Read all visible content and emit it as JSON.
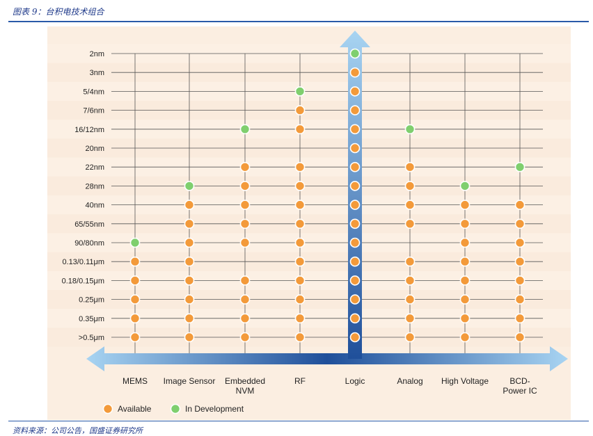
{
  "header": {
    "figure_title": "图表 9：台积电技术组合"
  },
  "footer": {
    "source": "资料来源：公司公告，国盛证券研究所"
  },
  "colors": {
    "panel_bg": "#fbeee1",
    "available": "#f39a3a",
    "in_development": "#7fcf6e",
    "arrow_light": "#a8d4f2",
    "arrow_dark": "#1f4f9a"
  },
  "chart_data": {
    "type": "scatter",
    "title": "",
    "xlabel": "",
    "ylabel": "",
    "categories": [
      "MEMS",
      "Image Sensor",
      "Embedded NVM",
      "RF",
      "Logic",
      "Analog",
      "High Voltage",
      "BCD-Power IC"
    ],
    "category_lines": [
      [
        "MEMS"
      ],
      [
        "Image Sensor"
      ],
      [
        "Embedded",
        "NVM"
      ],
      [
        "RF"
      ],
      [
        "Logic"
      ],
      [
        "Analog"
      ],
      [
        "High Voltage"
      ],
      [
        "BCD-",
        "Power IC"
      ]
    ],
    "nodes": [
      "2nm",
      "3nm",
      "5/4nm",
      "7/6nm",
      "16/12nm",
      "20nm",
      "22nm",
      "28nm",
      "40nm",
      "65/55nm",
      "90/80nm",
      "0.13/0.11μm",
      "0.18/0.15μm",
      "0.25μm",
      "0.35μm",
      ">0.5μm"
    ],
    "legend": [
      {
        "key": "available",
        "label": "Available"
      },
      {
        "key": "in_development",
        "label": "In Development"
      }
    ],
    "legend_position": "bottom-left",
    "grid": true,
    "points": {
      "MEMS": {
        "in_development": [
          "90/80nm"
        ],
        "available": [
          "0.13/0.11μm",
          "0.18/0.15μm",
          "0.25μm",
          "0.35μm",
          ">0.5μm"
        ]
      },
      "Image Sensor": {
        "in_development": [
          "28nm"
        ],
        "available": [
          "40nm",
          "65/55nm",
          "90/80nm",
          "0.13/0.11μm",
          "0.18/0.15μm",
          "0.25μm",
          "0.35μm",
          ">0.5μm"
        ]
      },
      "Embedded NVM": {
        "in_development": [
          "16/12nm"
        ],
        "available": [
          "22nm",
          "28nm",
          "40nm",
          "65/55nm",
          "90/80nm",
          "0.18/0.15μm",
          "0.25μm",
          "0.35μm",
          ">0.5μm"
        ]
      },
      "RF": {
        "in_development": [
          "5/4nm"
        ],
        "available": [
          "7/6nm",
          "16/12nm",
          "22nm",
          "28nm",
          "40nm",
          "65/55nm",
          "90/80nm",
          "0.13/0.11μm",
          "0.18/0.15μm",
          "0.25μm",
          "0.35μm",
          ">0.5μm"
        ]
      },
      "Logic": {
        "in_development": [
          "2nm"
        ],
        "available": [
          "3nm",
          "5/4nm",
          "7/6nm",
          "16/12nm",
          "20nm",
          "22nm",
          "28nm",
          "40nm",
          "65/55nm",
          "90/80nm",
          "0.13/0.11μm",
          "0.18/0.15μm",
          "0.25μm",
          "0.35μm",
          ">0.5μm"
        ]
      },
      "Analog": {
        "in_development": [
          "16/12nm"
        ],
        "available": [
          "22nm",
          "28nm",
          "40nm",
          "65/55nm",
          "0.13/0.11μm",
          "0.18/0.15μm",
          "0.25μm",
          "0.35μm",
          ">0.5μm"
        ]
      },
      "High Voltage": {
        "in_development": [
          "28nm"
        ],
        "available": [
          "40nm",
          "65/55nm",
          "90/80nm",
          "0.13/0.11μm",
          "0.18/0.15μm",
          "0.25μm",
          "0.35μm",
          ">0.5μm"
        ]
      },
      "BCD-Power IC": {
        "in_development": [
          "22nm"
        ],
        "available": [
          "40nm",
          "65/55nm",
          "90/80nm",
          "0.13/0.11μm",
          "0.18/0.15μm",
          "0.25μm",
          "0.35μm",
          ">0.5μm"
        ]
      }
    }
  }
}
